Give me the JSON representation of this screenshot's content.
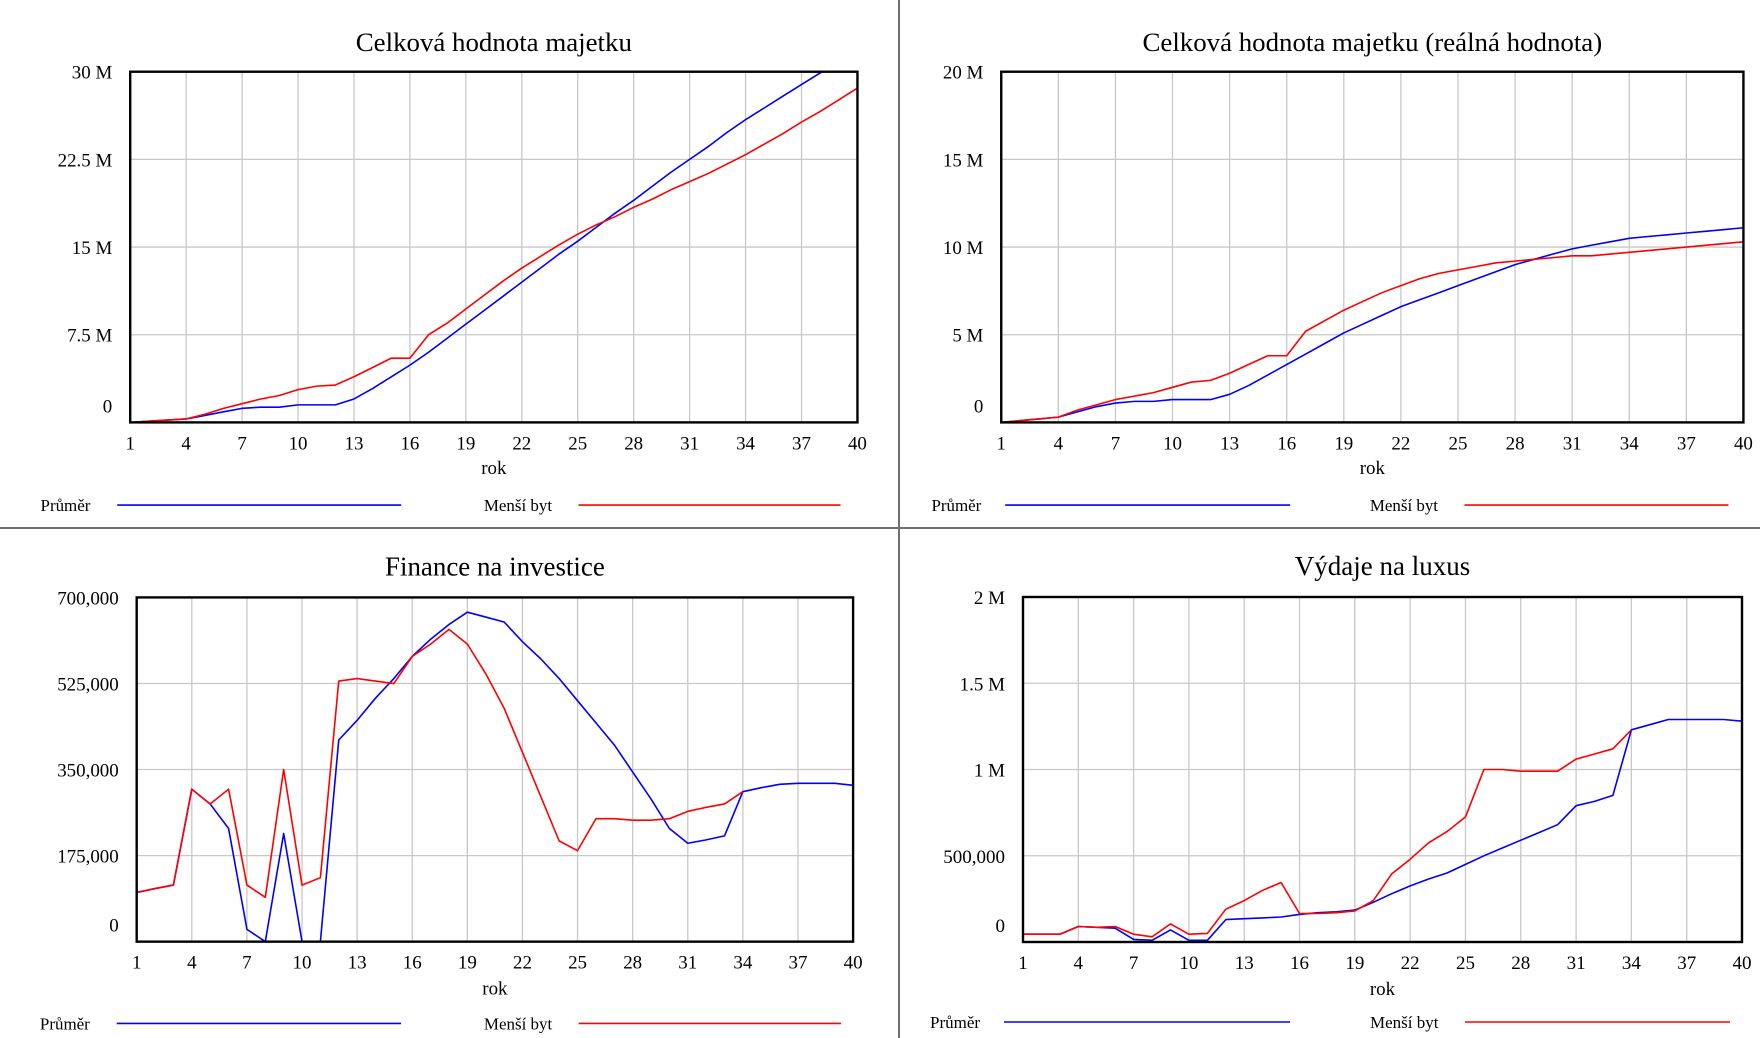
{
  "colors": {
    "series_1": "#0000ff",
    "series_2": "#ff0000",
    "grid": "#c8c8c8",
    "frame": "#000000",
    "divider": "#6f6f6f"
  },
  "chart_data": [
    {
      "type": "line",
      "title": "Celková hodnota majetku",
      "xlabel": "rok",
      "ylabel": "",
      "xlim": [
        1,
        40
      ],
      "ylim": [
        0,
        30000000
      ],
      "x_ticks": [
        1,
        4,
        7,
        10,
        13,
        16,
        19,
        22,
        25,
        28,
        31,
        34,
        37,
        40
      ],
      "y_ticks": [
        {
          "value": 0,
          "label": "0"
        },
        {
          "value": 7500000,
          "label": "7.5 M"
        },
        {
          "value": 15000000,
          "label": "15 M"
        },
        {
          "value": 22500000,
          "label": "22.5 M"
        },
        {
          "value": 30000000,
          "label": "30 M"
        }
      ],
      "grid": true,
      "legend": "bottom",
      "series": [
        {
          "name": "Průměr",
          "color": "#0000ff",
          "x": [
            1,
            2,
            3,
            4,
            5,
            6,
            7,
            8,
            9,
            10,
            11,
            12,
            13,
            14,
            15,
            16,
            17,
            18,
            19,
            20,
            21,
            22,
            23,
            24,
            25,
            26,
            27,
            28,
            29,
            30,
            31,
            32,
            33,
            34,
            35,
            36,
            37,
            38,
            39,
            40
          ],
          "y": [
            0,
            100000,
            200000,
            300000,
            600000,
            900000,
            1200000,
            1300000,
            1300000,
            1500000,
            1500000,
            1500000,
            2000000,
            2900000,
            3900000,
            4900000,
            6000000,
            7200000,
            8400000,
            9600000,
            10800000,
            12000000,
            13200000,
            14400000,
            15500000,
            16700000,
            17900000,
            19000000,
            20200000,
            21400000,
            22500000,
            23600000,
            24800000,
            25900000,
            26900000,
            27900000,
            28900000,
            29900000,
            30800000,
            31800000
          ]
        },
        {
          "name": "Menší byt",
          "color": "#ff0000",
          "x": [
            1,
            2,
            3,
            4,
            5,
            6,
            7,
            8,
            9,
            10,
            11,
            12,
            13,
            14,
            15,
            16,
            17,
            18,
            19,
            20,
            21,
            22,
            23,
            24,
            25,
            26,
            27,
            28,
            29,
            30,
            31,
            32,
            33,
            34,
            35,
            36,
            37,
            38,
            39,
            40
          ],
          "y": [
            0,
            100000,
            200000,
            300000,
            700000,
            1200000,
            1600000,
            2000000,
            2300000,
            2800000,
            3100000,
            3200000,
            3900000,
            4700000,
            5500000,
            5500000,
            7500000,
            8500000,
            9700000,
            10900000,
            12100000,
            13200000,
            14200000,
            15200000,
            16100000,
            16900000,
            17600000,
            18400000,
            19100000,
            19900000,
            20600000,
            21300000,
            22100000,
            22900000,
            23800000,
            24700000,
            25700000,
            26600000,
            27600000,
            28600000
          ]
        }
      ]
    },
    {
      "type": "line",
      "title": "Celková hodnota majetku (reálná hodnota)",
      "xlabel": "rok",
      "ylabel": "",
      "xlim": [
        1,
        40
      ],
      "ylim": [
        0,
        20000000
      ],
      "x_ticks": [
        1,
        4,
        7,
        10,
        13,
        16,
        19,
        22,
        25,
        28,
        31,
        34,
        37,
        40
      ],
      "y_ticks": [
        {
          "value": 0,
          "label": "0"
        },
        {
          "value": 5000000,
          "label": "5 M"
        },
        {
          "value": 10000000,
          "label": "10 M"
        },
        {
          "value": 15000000,
          "label": "15 M"
        },
        {
          "value": 20000000,
          "label": "20 M"
        }
      ],
      "grid": true,
      "legend": "bottom",
      "series": [
        {
          "name": "Průměr",
          "color": "#0000ff",
          "x": [
            1,
            2,
            3,
            4,
            5,
            6,
            7,
            8,
            9,
            10,
            11,
            12,
            13,
            14,
            15,
            16,
            17,
            18,
            19,
            20,
            21,
            22,
            23,
            24,
            25,
            26,
            27,
            28,
            29,
            30,
            31,
            32,
            33,
            34,
            35,
            36,
            37,
            38,
            39,
            40
          ],
          "y": [
            0,
            100000,
            200000,
            300000,
            600000,
            900000,
            1100000,
            1200000,
            1200000,
            1300000,
            1300000,
            1300000,
            1600000,
            2100000,
            2700000,
            3300000,
            3900000,
            4500000,
            5100000,
            5600000,
            6100000,
            6600000,
            7000000,
            7400000,
            7800000,
            8200000,
            8600000,
            9000000,
            9300000,
            9600000,
            9900000,
            10100000,
            10300000,
            10500000,
            10600000,
            10700000,
            10800000,
            10900000,
            11000000,
            11100000
          ]
        },
        {
          "name": "Menší byt",
          "color": "#ff0000",
          "x": [
            1,
            2,
            3,
            4,
            5,
            6,
            7,
            8,
            9,
            10,
            11,
            12,
            13,
            14,
            15,
            16,
            17,
            18,
            19,
            20,
            21,
            22,
            23,
            24,
            25,
            26,
            27,
            28,
            29,
            30,
            31,
            32,
            33,
            34,
            35,
            36,
            37,
            38,
            39,
            40
          ],
          "y": [
            0,
            100000,
            200000,
            300000,
            700000,
            1000000,
            1300000,
            1500000,
            1700000,
            2000000,
            2300000,
            2400000,
            2800000,
            3300000,
            3800000,
            3800000,
            5200000,
            5800000,
            6400000,
            6900000,
            7400000,
            7800000,
            8200000,
            8500000,
            8700000,
            8900000,
            9100000,
            9200000,
            9300000,
            9400000,
            9500000,
            9500000,
            9600000,
            9700000,
            9800000,
            9900000,
            10000000,
            10100000,
            10200000,
            10300000
          ]
        }
      ]
    },
    {
      "type": "line",
      "title": "Finance na investice",
      "xlabel": "rok",
      "ylabel": "",
      "xlim": [
        1,
        40
      ],
      "ylim": [
        0,
        700000
      ],
      "x_ticks": [
        1,
        4,
        7,
        10,
        13,
        16,
        19,
        22,
        25,
        28,
        31,
        34,
        37,
        40
      ],
      "y_ticks": [
        {
          "value": 0,
          "label": "0"
        },
        {
          "value": 175000,
          "label": "175,000"
        },
        {
          "value": 350000,
          "label": "350,000"
        },
        {
          "value": 525000,
          "label": "525,000"
        },
        {
          "value": 700000,
          "label": "700,000"
        }
      ],
      "grid": true,
      "legend": "bottom",
      "series": [
        {
          "name": "Průměr",
          "color": "#0000ff",
          "x": [
            1,
            2,
            3,
            4,
            5,
            6,
            7,
            8,
            9,
            10,
            11,
            12,
            13,
            14,
            15,
            16,
            17,
            18,
            19,
            20,
            21,
            22,
            23,
            24,
            25,
            26,
            27,
            28,
            29,
            30,
            31,
            32,
            33,
            34,
            35,
            36,
            37,
            38,
            39,
            40
          ],
          "y": [
            100000,
            108000,
            115000,
            310000,
            280000,
            230000,
            25000,
            0,
            220000,
            0,
            0,
            410000,
            450000,
            495000,
            535000,
            580000,
            615000,
            645000,
            670000,
            660000,
            650000,
            610000,
            575000,
            535000,
            490000,
            445000,
            400000,
            345000,
            290000,
            230000,
            200000,
            207000,
            215000,
            305000,
            313000,
            320000,
            322000,
            322000,
            322000,
            318000
          ]
        },
        {
          "name": "Menší byt",
          "color": "#ff0000",
          "x": [
            1,
            2,
            3,
            4,
            5,
            6,
            7,
            8,
            9,
            10,
            11,
            12,
            13,
            14,
            15,
            16,
            17,
            18,
            19,
            20,
            21,
            22,
            23,
            24,
            25,
            26,
            27,
            28,
            29,
            30,
            31,
            32,
            33,
            34
          ],
          "y": [
            100000,
            108000,
            115000,
            310000,
            280000,
            310000,
            115000,
            90000,
            350000,
            115000,
            130000,
            530000,
            535000,
            530000,
            525000,
            580000,
            605000,
            635000,
            605000,
            545000,
            475000,
            385000,
            295000,
            205000,
            185000,
            250000,
            250000,
            247000,
            247000,
            250000,
            265000,
            273000,
            280000,
            305000
          ]
        }
      ]
    },
    {
      "type": "line",
      "title": "Výdaje na luxus",
      "xlabel": "rok",
      "ylabel": "",
      "xlim": [
        1,
        40
      ],
      "ylim": [
        0,
        2000000
      ],
      "x_ticks": [
        1,
        4,
        7,
        10,
        13,
        16,
        19,
        22,
        25,
        28,
        31,
        34,
        37,
        40
      ],
      "y_ticks": [
        {
          "value": 0,
          "label": "0"
        },
        {
          "value": 500000,
          "label": "500,000"
        },
        {
          "value": 1000000,
          "label": "1 M"
        },
        {
          "value": 1500000,
          "label": "1.5 M"
        },
        {
          "value": 2000000,
          "label": "2 M"
        }
      ],
      "grid": true,
      "legend": "bottom",
      "series": [
        {
          "name": "Průměr",
          "color": "#0000ff",
          "x": [
            1,
            2,
            3,
            4,
            5,
            6,
            7,
            8,
            9,
            10,
            11,
            12,
            13,
            14,
            15,
            16,
            17,
            18,
            19,
            20,
            21,
            22,
            23,
            24,
            25,
            26,
            27,
            28,
            29,
            30,
            31,
            32,
            33,
            34,
            35,
            36,
            37,
            38,
            39,
            40
          ],
          "y": [
            45000,
            45000,
            45000,
            90000,
            85000,
            80000,
            15000,
            10000,
            70000,
            10000,
            10000,
            130000,
            135000,
            140000,
            145000,
            160000,
            170000,
            175000,
            185000,
            230000,
            280000,
            325000,
            365000,
            400000,
            450000,
            500000,
            545000,
            590000,
            635000,
            680000,
            790000,
            815000,
            850000,
            1230000,
            1260000,
            1290000,
            1290000,
            1290000,
            1290000,
            1280000
          ]
        },
        {
          "name": "Menší byt",
          "color": "#ff0000",
          "x": [
            1,
            2,
            3,
            4,
            5,
            6,
            7,
            8,
            9,
            10,
            11,
            12,
            13,
            14,
            15,
            16,
            17,
            18,
            19,
            20,
            21,
            22,
            23,
            24,
            25,
            26,
            27,
            28,
            29,
            30,
            31,
            32,
            33,
            34
          ],
          "y": [
            45000,
            45000,
            45000,
            90000,
            85000,
            90000,
            45000,
            30000,
            105000,
            45000,
            50000,
            190000,
            240000,
            300000,
            345000,
            165000,
            165000,
            170000,
            180000,
            240000,
            395000,
            480000,
            575000,
            640000,
            725000,
            1000000,
            1000000,
            990000,
            990000,
            990000,
            1060000,
            1090000,
            1120000,
            1230000
          ]
        }
      ]
    }
  ]
}
